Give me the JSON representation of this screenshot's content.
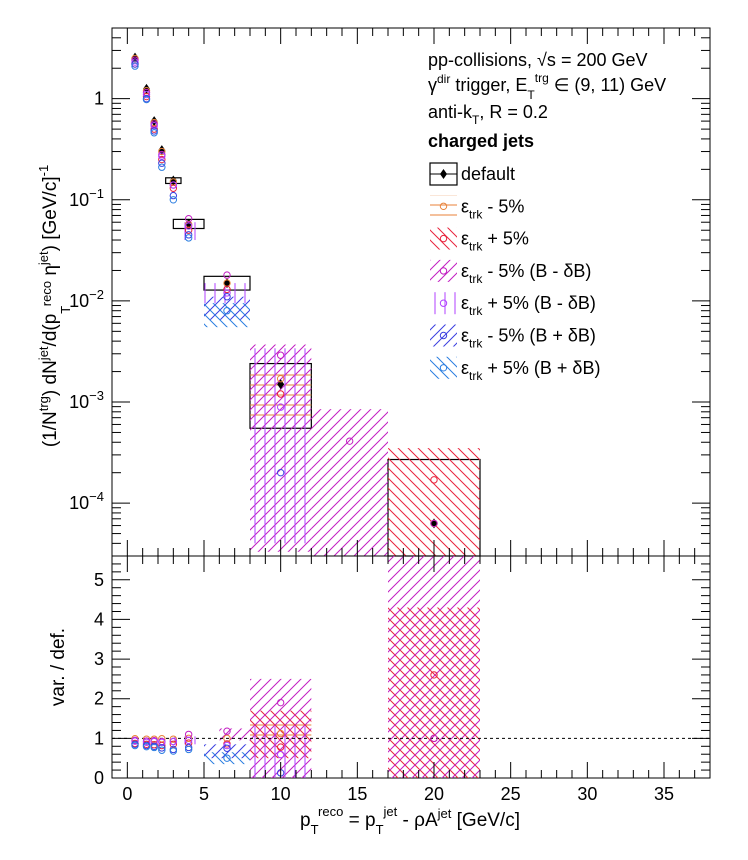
{
  "chart_data": [
    {
      "type": "scatter",
      "panel": "main",
      "yscale": "log",
      "xlim": [
        -1,
        38
      ],
      "ylim": [
        3e-05,
        5
      ],
      "ylabel": "(1/N^trg) dN^jet/d(p_T^reco η^jet) [GeV/c]^-1",
      "yticks": [
        {
          "v": 1,
          "label": "1"
        },
        {
          "v": 0.1,
          "label": "10",
          "exp": "−1"
        },
        {
          "v": 0.01,
          "label": "10",
          "exp": "−2"
        },
        {
          "v": 0.001,
          "label": "10",
          "exp": "−3"
        },
        {
          "v": 0.0001,
          "label": "10",
          "exp": "−4"
        }
      ],
      "annotations": [
        {
          "text": "pp-collisions, √s = 200 GeV"
        },
        {
          "text": "γ^dir trigger, E_T^trg ∈ (9, 11) GeV"
        },
        {
          "text": "anti-k_T, R = 0.2"
        },
        {
          "text": "charged jets",
          "bold": true
        }
      ],
      "series": [
        {
          "name": "default",
          "color": "#000000",
          "points": [
            [
              0.5,
              2.55
            ],
            [
              1.25,
              1.25
            ],
            [
              1.75,
              0.6
            ],
            [
              2.25,
              0.31
            ],
            [
              3,
              0.155
            ],
            [
              4,
              0.058
            ],
            [
              6.5,
              0.015
            ],
            [
              10,
              0.0015
            ],
            [
              20,
              6.3e-05
            ]
          ],
          "boxes": [
            [
              2.5,
              3.5,
              0.145,
              0.165
            ],
            [
              3,
              5,
              0.052,
              0.064
            ],
            [
              5,
              8,
              0.0128,
              0.0175
            ],
            [
              8,
              12,
              0.00055,
              0.0024
            ],
            [
              17,
              23,
              2.7e-05,
              0.00027
            ]
          ]
        },
        {
          "name": "ε_trk - 5%",
          "color": "#e8823a",
          "hatch": "horizontal",
          "points": [
            [
              0.5,
              2.5
            ],
            [
              1.25,
              1.2
            ],
            [
              1.75,
              0.58
            ],
            [
              2.25,
              0.3
            ],
            [
              3,
              0.15
            ],
            [
              4,
              0.057
            ],
            [
              6.5,
              0.015
            ],
            [
              10,
              0.0017
            ],
            [
              20,
              6.3e-05
            ]
          ],
          "boxes": [
            [
              8,
              12,
              0.0006,
              0.0021
            ]
          ]
        },
        {
          "name": "ε_trk + 5%",
          "color": "#e8233c",
          "hatch": "diagonal-down",
          "points": [
            [
              0.5,
              2.2
            ],
            [
              1.25,
              1.05
            ],
            [
              1.75,
              0.5
            ],
            [
              2.25,
              0.25
            ],
            [
              3,
              0.13
            ],
            [
              4,
              0.05
            ],
            [
              6.5,
              0.013
            ],
            [
              10,
              0.0012
            ],
            [
              20,
              0.00017
            ]
          ],
          "boxes": [
            [
              17,
              23,
              2.7e-05,
              0.00035
            ]
          ]
        },
        {
          "name": "ε_trk - 5% (B - δB)",
          "color": "#c21ec2",
          "hatch": "diagonal-up",
          "points": [
            [
              0.5,
              2.4
            ],
            [
              1.25,
              1.15
            ],
            [
              1.75,
              0.56
            ],
            [
              2.25,
              0.28
            ],
            [
              3,
              0.14
            ],
            [
              4,
              0.065
            ],
            [
              6.5,
              0.018
            ],
            [
              10,
              0.0029
            ],
            [
              14.5,
              0.00041
            ],
            [
              20,
              6.3e-05
            ]
          ],
          "boxes": [
            [
              8,
              12,
              3.3e-05,
              0.0037
            ],
            [
              12,
              17,
              3e-05,
              0.00085
            ]
          ]
        },
        {
          "name": "ε_trk + 5% (B - δB)",
          "color": "#b040ff",
          "hatch": "vertical",
          "points": [
            [
              0.5,
              2.3
            ],
            [
              1.25,
              1.1
            ],
            [
              1.75,
              0.54
            ],
            [
              2.25,
              0.27
            ],
            [
              3,
              0.14
            ],
            [
              4,
              0.055
            ],
            [
              6.5,
              0.012
            ],
            [
              10,
              0.00089
            ]
          ],
          "boxes": [
            [
              3.2,
              5,
              0.04,
              0.06
            ],
            [
              5,
              8,
              0.0095,
              0.015
            ],
            [
              8,
              12,
              4e-05,
              0.0034
            ]
          ]
        },
        {
          "name": "ε_trk - 5% (B + δB)",
          "color": "#3a3fe0",
          "hatch": "diagonal-up",
          "points": [
            [
              0.5,
              2.2
            ],
            [
              1.25,
              1.0
            ],
            [
              1.75,
              0.48
            ],
            [
              2.25,
              0.23
            ],
            [
              3,
              0.11
            ],
            [
              4,
              0.045
            ],
            [
              6.5,
              0.011
            ],
            [
              10,
              0.0002
            ]
          ],
          "boxes": [
            [
              5,
              8,
              0.0065,
              0.011
            ]
          ]
        },
        {
          "name": "ε_trk + 5% (B + δB)",
          "color": "#2a7de0",
          "hatch": "diagonal-down",
          "points": [
            [
              0.5,
              2.1
            ],
            [
              1.25,
              0.98
            ],
            [
              1.75,
              0.46
            ],
            [
              2.25,
              0.21
            ],
            [
              3,
              0.1
            ],
            [
              4,
              0.042
            ],
            [
              6.5,
              0.008
            ]
          ],
          "boxes": [
            [
              5,
              8,
              0.0055,
              0.0095
            ]
          ]
        }
      ]
    },
    {
      "type": "scatter",
      "panel": "ratio",
      "xlim": [
        -1,
        38
      ],
      "ylim": [
        0,
        5.6
      ],
      "xlabel": "p_T^reco = p_T^jet - ρA^jet [GeV/c]",
      "ylabel": "var. / def.",
      "xticks": [
        0,
        5,
        10,
        15,
        20,
        25,
        30,
        35
      ],
      "yticks": [
        0,
        1,
        2,
        3,
        4,
        5
      ],
      "reference_line": 1,
      "series": [
        {
          "name": "ε_trk - 5%",
          "color": "#e8823a",
          "points": [
            [
              0.5,
              0.99
            ],
            [
              1.25,
              0.98
            ],
            [
              1.75,
              0.98
            ],
            [
              2.25,
              0.99
            ],
            [
              3,
              0.98
            ],
            [
              4,
              1.0
            ],
            [
              6.5,
              1.0
            ],
            [
              10,
              1.12
            ],
            [
              20,
              1.0
            ]
          ],
          "boxes": [
            [
              8,
              12,
              0.85,
              1.45
            ]
          ]
        },
        {
          "name": "ε_trk + 5%",
          "color": "#e8233c",
          "points": [
            [
              0.5,
              0.87
            ],
            [
              1.25,
              0.85
            ],
            [
              1.75,
              0.84
            ],
            [
              2.25,
              0.82
            ],
            [
              3,
              0.85
            ],
            [
              4,
              0.88
            ],
            [
              6.5,
              0.86
            ],
            [
              10,
              0.78
            ],
            [
              20,
              2.6
            ]
          ],
          "boxes": [
            [
              17,
              23,
              0,
              4.3
            ],
            [
              8,
              12,
              0.5,
              1.7
            ]
          ]
        },
        {
          "name": "ε_trk - 5% (B - δB)",
          "color": "#c21ec2",
          "points": [
            [
              0.5,
              0.95
            ],
            [
              1.25,
              0.93
            ],
            [
              1.75,
              0.94
            ],
            [
              2.25,
              0.92
            ],
            [
              3,
              0.92
            ],
            [
              4,
              1.1
            ],
            [
              6.5,
              1.18
            ],
            [
              10,
              1.9
            ],
            [
              20,
              1.0
            ]
          ],
          "boxes": [
            [
              17,
              23,
              0,
              5.6
            ],
            [
              8,
              12,
              0,
              2.5
            ],
            [
              6,
              8,
              0.95,
              1.25
            ]
          ]
        },
        {
          "name": "ε_trk + 5% (B - δB)",
          "color": "#b040ff",
          "points": [
            [
              0.5,
              0.93
            ],
            [
              1.25,
              0.9
            ],
            [
              1.75,
              0.92
            ],
            [
              2.25,
              0.9
            ],
            [
              3,
              0.92
            ],
            [
              4,
              0.95
            ],
            [
              6.5,
              0.82
            ],
            [
              10,
              0.59
            ]
          ],
          "boxes": [
            [
              8,
              12,
              0,
              1.3
            ],
            [
              3,
              5,
              0.85,
              1.05
            ]
          ]
        },
        {
          "name": "ε_trk - 5% (B + δB)",
          "color": "#3a3fe0",
          "points": [
            [
              0.5,
              0.85
            ],
            [
              1.25,
              0.82
            ],
            [
              1.75,
              0.8
            ],
            [
              2.25,
              0.76
            ],
            [
              3,
              0.72
            ],
            [
              4,
              0.77
            ],
            [
              6.5,
              0.75
            ],
            [
              10,
              0.13
            ]
          ],
          "boxes": [
            [
              5,
              8,
              0.5,
              0.85
            ]
          ]
        },
        {
          "name": "ε_trk + 5% (B + δB)",
          "color": "#2a7de0",
          "points": [
            [
              0.5,
              0.82
            ],
            [
              1.25,
              0.79
            ],
            [
              1.75,
              0.77
            ],
            [
              2.25,
              0.7
            ],
            [
              3,
              0.68
            ],
            [
              4,
              0.72
            ],
            [
              6.5,
              0.5
            ]
          ],
          "boxes": [
            [
              5,
              8,
              0.35,
              0.65
            ]
          ]
        }
      ]
    }
  ],
  "legend": [
    {
      "label": "default",
      "color": "#000000"
    },
    {
      "label": "ε_trk - 5%",
      "color": "#e8823a"
    },
    {
      "label": "ε_trk + 5%",
      "color": "#e8233c"
    },
    {
      "label": "ε_trk - 5% (B - δB)",
      "color": "#c21ec2"
    },
    {
      "label": "ε_trk + 5% (B - δB)",
      "color": "#b040ff"
    },
    {
      "label": "ε_trk - 5% (B + δB)",
      "color": "#3a3fe0"
    },
    {
      "label": "ε_trk + 5% (B + δB)",
      "color": "#2a7de0"
    }
  ]
}
